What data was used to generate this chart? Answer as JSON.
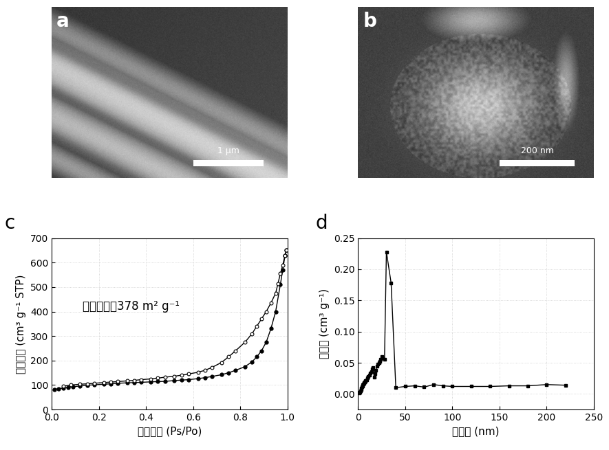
{
  "panel_labels": [
    "a",
    "b",
    "c",
    "d"
  ],
  "panel_label_fontsize": 20,
  "panel_label_color": "white",
  "panel_label_color_cd": "black",
  "scalebar_a_text": "1 μm",
  "scalebar_b_text": "200 nm",
  "annotation_text": "比表面积：378 m² g⁻¹",
  "xlabel_c": "相对压力 (Ps/Po)",
  "ylabel_c": "吸附容量 (cm³ g⁻¹ STP)",
  "xlabel_d": "孔直径 (nm)",
  "ylabel_d": "孔容量 (cm³ g⁻¹)",
  "ylim_c": [
    0,
    700
  ],
  "xlim_c": [
    0.0,
    1.0
  ],
  "ylim_d": [
    -0.025,
    0.25
  ],
  "xlim_d": [
    0,
    250
  ],
  "adsorption_x": [
    0.01,
    0.03,
    0.05,
    0.07,
    0.09,
    0.12,
    0.15,
    0.18,
    0.22,
    0.25,
    0.28,
    0.32,
    0.35,
    0.38,
    0.42,
    0.45,
    0.48,
    0.52,
    0.55,
    0.58,
    0.62,
    0.65,
    0.68,
    0.72,
    0.75,
    0.78,
    0.82,
    0.85,
    0.87,
    0.89,
    0.91,
    0.93,
    0.95,
    0.97,
    0.98,
    0.99,
    0.995
  ],
  "adsorption_y": [
    82,
    85,
    88,
    91,
    93,
    96,
    99,
    101,
    103,
    105,
    107,
    109,
    110,
    111,
    113,
    114,
    115,
    118,
    120,
    122,
    126,
    130,
    135,
    142,
    150,
    160,
    175,
    195,
    215,
    240,
    275,
    330,
    400,
    510,
    570,
    630,
    650
  ],
  "desorption_x": [
    0.995,
    0.99,
    0.98,
    0.97,
    0.96,
    0.95,
    0.93,
    0.91,
    0.89,
    0.87,
    0.85,
    0.82,
    0.78,
    0.75,
    0.72,
    0.68,
    0.65,
    0.62,
    0.58,
    0.55,
    0.52,
    0.48,
    0.45,
    0.42,
    0.38,
    0.35,
    0.32,
    0.28,
    0.25,
    0.22,
    0.18,
    0.15,
    0.12,
    0.08,
    0.05
  ],
  "desorption_y": [
    650,
    630,
    590,
    555,
    515,
    475,
    435,
    400,
    370,
    340,
    310,
    275,
    240,
    215,
    192,
    172,
    160,
    152,
    145,
    140,
    136,
    132,
    128,
    125,
    122,
    119,
    117,
    114,
    112,
    110,
    107,
    105,
    103,
    100,
    95
  ],
  "pore_x": [
    1.5,
    2.0,
    2.5,
    3.0,
    3.5,
    4.0,
    4.5,
    5.0,
    5.5,
    6.0,
    6.5,
    7.0,
    7.5,
    8.0,
    9.0,
    10.0,
    11.0,
    12.0,
    13.0,
    14.0,
    15.0,
    16.0,
    17.0,
    18.0,
    19.0,
    20.0,
    21.0,
    22.0,
    23.0,
    24.0,
    25.0,
    26.0,
    28.0,
    30.0,
    35.0,
    40.0,
    50.0,
    60.0,
    70.0,
    80.0,
    90.0,
    100.0,
    120.0,
    140.0,
    160.0,
    180.0,
    200.0,
    220.0
  ],
  "pore_y": [
    0.001,
    0.003,
    0.005,
    0.007,
    0.009,
    0.011,
    0.013,
    0.015,
    0.016,
    0.017,
    0.018,
    0.019,
    0.02,
    0.021,
    0.023,
    0.026,
    0.028,
    0.03,
    0.033,
    0.036,
    0.04,
    0.042,
    0.027,
    0.032,
    0.038,
    0.045,
    0.048,
    0.05,
    0.052,
    0.055,
    0.06,
    0.058,
    0.055,
    0.228,
    0.178,
    0.01,
    0.012,
    0.013,
    0.011,
    0.015,
    0.013,
    0.012,
    0.012,
    0.012,
    0.013,
    0.013,
    0.015,
    0.014
  ],
  "bg_color": "#ffffff",
  "plot_bg": "#ffffff",
  "line_color": "black",
  "marker_color": "black",
  "tick_fontsize": 10,
  "label_fontsize": 11,
  "annotation_fontsize": 12
}
